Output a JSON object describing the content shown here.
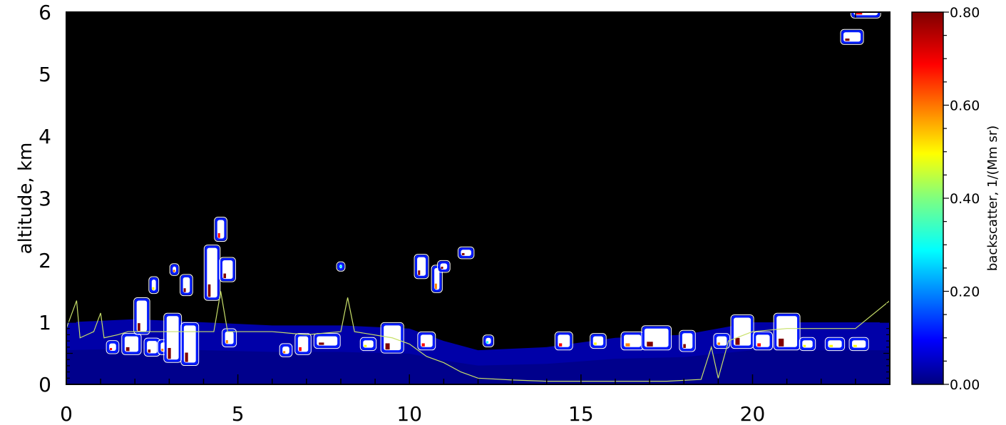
{
  "chart_data": {
    "type": "heatmap",
    "title": "",
    "xlabel": "",
    "ylabel": "altitude,  km",
    "xlim": [
      0,
      24
    ],
    "ylim": [
      0,
      6
    ],
    "x_ticks": [
      0,
      5,
      10,
      15,
      20
    ],
    "y_ticks": [
      0,
      1,
      2,
      3,
      4,
      5,
      6
    ],
    "x_tick_labels": [
      "0",
      "5",
      "10",
      "15",
      "20"
    ],
    "y_tick_labels": [
      "0",
      "1",
      "2",
      "3",
      "4",
      "5",
      "6"
    ],
    "colorbar": {
      "label": "backscatter,  1/(Mm sr)",
      "range": [
        0,
        0.8
      ],
      "tick_values": [
        0,
        0.2,
        0.4,
        0.6,
        0.8
      ],
      "tick_labels": [
        "0.00",
        "0.20",
        "0.40",
        "0.60",
        "0.80"
      ],
      "colormap": "jet"
    },
    "background_color": "#000000",
    "boundary_layer_line_color": "#c8e06a",
    "cloud_contour_color": "#ffffff",
    "boundary_layer_height": [
      [
        0,
        0.9
      ],
      [
        0.3,
        1.35
      ],
      [
        0.4,
        0.75
      ],
      [
        0.8,
        0.85
      ],
      [
        1.0,
        1.15
      ],
      [
        1.1,
        0.75
      ],
      [
        1.5,
        0.8
      ],
      [
        1.8,
        0.85
      ],
      [
        2.5,
        0.85
      ],
      [
        3.5,
        0.85
      ],
      [
        4.3,
        0.85
      ],
      [
        4.5,
        1.5
      ],
      [
        4.7,
        0.85
      ],
      [
        6.0,
        0.85
      ],
      [
        7.0,
        0.8
      ],
      [
        8.0,
        0.85
      ],
      [
        8.2,
        1.4
      ],
      [
        8.4,
        0.85
      ],
      [
        9.5,
        0.75
      ],
      [
        10.0,
        0.65
      ],
      [
        10.5,
        0.45
      ],
      [
        11.0,
        0.35
      ],
      [
        11.5,
        0.2
      ],
      [
        12.0,
        0.1
      ],
      [
        13.0,
        0.07
      ],
      [
        14.0,
        0.05
      ],
      [
        15.0,
        0.05
      ],
      [
        16.0,
        0.05
      ],
      [
        17.5,
        0.05
      ],
      [
        18.5,
        0.08
      ],
      [
        18.8,
        0.6
      ],
      [
        19.0,
        0.1
      ],
      [
        19.3,
        0.7
      ],
      [
        20.0,
        0.85
      ],
      [
        21.0,
        0.9
      ],
      [
        22.0,
        0.9
      ],
      [
        23.0,
        0.9
      ],
      [
        24.0,
        1.35
      ]
    ],
    "aerosol_layer": [
      [
        0,
        1.0
      ],
      [
        2,
        1.05
      ],
      [
        4,
        1.0
      ],
      [
        6,
        0.95
      ],
      [
        8,
        0.95
      ],
      [
        10,
        0.9
      ],
      [
        11,
        0.7
      ],
      [
        12,
        0.55
      ],
      [
        14,
        0.6
      ],
      [
        16,
        0.75
      ],
      [
        18,
        0.8
      ],
      [
        20,
        1.0
      ],
      [
        22,
        1.0
      ],
      [
        24,
        1.0
      ]
    ],
    "clouds": [
      {
        "x": 1.35,
        "y": 0.6,
        "w": 0.2,
        "h": 0.12,
        "value": 0.7
      },
      {
        "x": 1.9,
        "y": 0.65,
        "w": 0.4,
        "h": 0.25,
        "value": 0.8
      },
      {
        "x": 2.2,
        "y": 1.1,
        "w": 0.3,
        "h": 0.5,
        "value": 0.8
      },
      {
        "x": 2.5,
        "y": 0.6,
        "w": 0.3,
        "h": 0.2,
        "value": 0.8
      },
      {
        "x": 2.55,
        "y": 1.6,
        "w": 0.12,
        "h": 0.18,
        "value": 0.5
      },
      {
        "x": 2.85,
        "y": 0.6,
        "w": 0.2,
        "h": 0.15,
        "value": 0.6
      },
      {
        "x": 3.1,
        "y": 0.75,
        "w": 0.35,
        "h": 0.7,
        "value": 0.8
      },
      {
        "x": 3.15,
        "y": 1.85,
        "w": 0.1,
        "h": 0.1,
        "value": 0.6
      },
      {
        "x": 3.5,
        "y": 1.6,
        "w": 0.2,
        "h": 0.25,
        "value": 0.8
      },
      {
        "x": 3.6,
        "y": 0.65,
        "w": 0.35,
        "h": 0.6,
        "value": 0.8
      },
      {
        "x": 4.25,
        "y": 1.8,
        "w": 0.3,
        "h": 0.8,
        "value": 0.8
      },
      {
        "x": 4.5,
        "y": 2.5,
        "w": 0.2,
        "h": 0.3,
        "value": 0.7
      },
      {
        "x": 4.7,
        "y": 1.85,
        "w": 0.3,
        "h": 0.3,
        "value": 0.8
      },
      {
        "x": 4.75,
        "y": 0.75,
        "w": 0.25,
        "h": 0.2,
        "value": 0.6
      },
      {
        "x": 6.4,
        "y": 0.55,
        "w": 0.2,
        "h": 0.12,
        "value": 0.6
      },
      {
        "x": 6.9,
        "y": 0.65,
        "w": 0.3,
        "h": 0.25,
        "value": 0.7
      },
      {
        "x": 7.6,
        "y": 0.7,
        "w": 0.6,
        "h": 0.15,
        "value": 0.8
      },
      {
        "x": 8.0,
        "y": 1.9,
        "w": 0.08,
        "h": 0.06,
        "value": 0.3
      },
      {
        "x": 8.8,
        "y": 0.65,
        "w": 0.3,
        "h": 0.12,
        "value": 0.5
      },
      {
        "x": 9.5,
        "y": 0.75,
        "w": 0.5,
        "h": 0.4,
        "value": 0.8
      },
      {
        "x": 10.35,
        "y": 1.9,
        "w": 0.25,
        "h": 0.3,
        "value": 0.8
      },
      {
        "x": 10.5,
        "y": 0.7,
        "w": 0.35,
        "h": 0.2,
        "value": 0.7
      },
      {
        "x": 10.8,
        "y": 1.7,
        "w": 0.15,
        "h": 0.35,
        "value": 0.6
      },
      {
        "x": 11.0,
        "y": 1.9,
        "w": 0.2,
        "h": 0.1,
        "value": 0.8
      },
      {
        "x": 11.65,
        "y": 2.12,
        "w": 0.3,
        "h": 0.1,
        "value": 0.8
      },
      {
        "x": 12.3,
        "y": 0.7,
        "w": 0.15,
        "h": 0.1,
        "value": 0.3
      },
      {
        "x": 14.5,
        "y": 0.7,
        "w": 0.35,
        "h": 0.2,
        "value": 0.7
      },
      {
        "x": 15.5,
        "y": 0.7,
        "w": 0.3,
        "h": 0.15,
        "value": 0.5
      },
      {
        "x": 16.5,
        "y": 0.7,
        "w": 0.5,
        "h": 0.2,
        "value": 0.6
      },
      {
        "x": 17.2,
        "y": 0.75,
        "w": 0.7,
        "h": 0.3,
        "value": 0.8
      },
      {
        "x": 18.1,
        "y": 0.7,
        "w": 0.3,
        "h": 0.25,
        "value": 0.8
      },
      {
        "x": 19.1,
        "y": 0.7,
        "w": 0.3,
        "h": 0.15,
        "value": 0.6
      },
      {
        "x": 19.7,
        "y": 0.85,
        "w": 0.5,
        "h": 0.45,
        "value": 0.8
      },
      {
        "x": 20.3,
        "y": 0.7,
        "w": 0.4,
        "h": 0.2,
        "value": 0.7
      },
      {
        "x": 21.0,
        "y": 0.85,
        "w": 0.6,
        "h": 0.5,
        "value": 0.8
      },
      {
        "x": 21.6,
        "y": 0.65,
        "w": 0.3,
        "h": 0.12,
        "value": 0.5
      },
      {
        "x": 22.4,
        "y": 0.65,
        "w": 0.4,
        "h": 0.12,
        "value": 0.5
      },
      {
        "x": 23.1,
        "y": 0.65,
        "w": 0.4,
        "h": 0.12,
        "value": 0.5
      },
      {
        "x": 22.9,
        "y": 5.6,
        "w": 0.5,
        "h": 0.15,
        "value": 0.8
      },
      {
        "x": 23.3,
        "y": 6.0,
        "w": 0.7,
        "h": 0.1,
        "value": 0.7
      }
    ]
  }
}
